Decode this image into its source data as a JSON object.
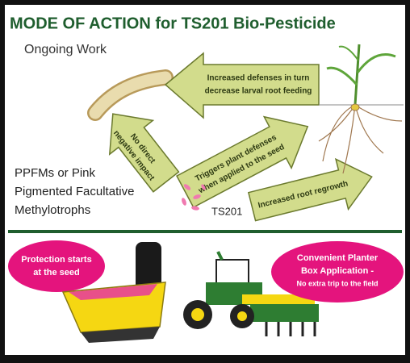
{
  "header": {
    "title": "MODE OF ACTION for TS201 Bio-Pesticide",
    "subtitle": "Ongoing Work"
  },
  "arrows": [
    {
      "lines": [
        "Increased defenses in turn",
        "decrease larval root feeding"
      ]
    },
    {
      "lines": [
        "No direct",
        "negative impact"
      ]
    },
    {
      "lines": [
        "Triggers plant defenses",
        "when applied to the seed"
      ]
    },
    {
      "lines": [
        "Increased root regrowth"
      ]
    }
  ],
  "organism": {
    "lines": [
      "PPFMs or Pink",
      "Pigmented Facultative",
      "Methylotrophs"
    ]
  },
  "product": "TS201",
  "callouts": [
    {
      "lines": [
        "Protection starts",
        "at the seed"
      ]
    },
    {
      "lines": [
        "Convenient Planter",
        "Box Application -"
      ],
      "note": "No extra trip to the field"
    }
  ]
}
